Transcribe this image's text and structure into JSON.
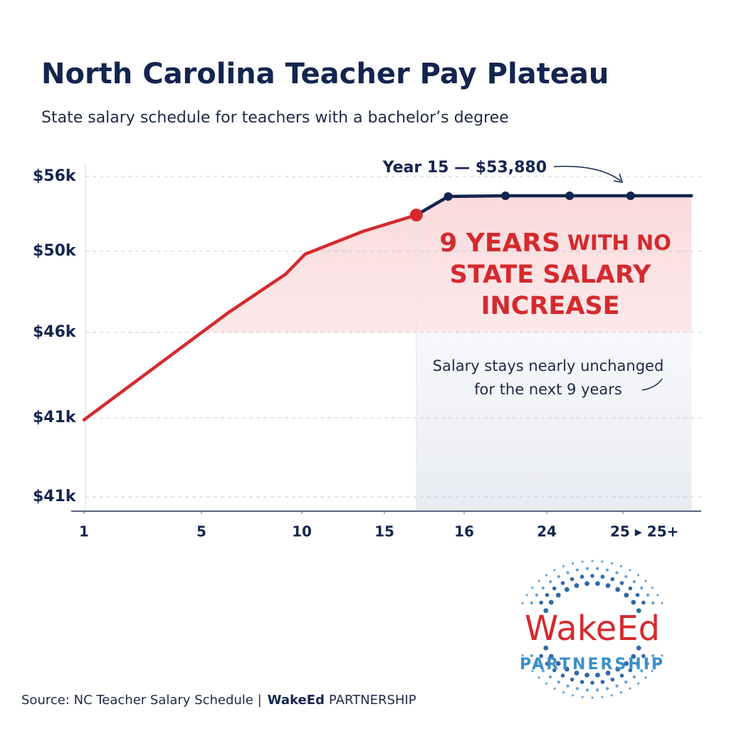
{
  "chart_data": {
    "type": "line",
    "title": "North Carolina Teacher Pay Plateau",
    "subtitle": "State salary schedule for teachers with a bachelor’s degree",
    "xlim": [
      1,
      25.9
    ],
    "xticks": [
      1,
      5,
      10,
      15,
      16,
      24,
      {
        "value": 25,
        "label": "25 ▸ 25+"
      }
    ],
    "ylim": [
      40600,
      56000
    ],
    "yticks": [
      {
        "value": 40600,
        "label": "$41k"
      },
      {
        "value": 41400,
        "label": "$41k"
      },
      {
        "value": 46000,
        "label": "$46k"
      },
      {
        "value": 50000,
        "label": "$50k"
      },
      {
        "value": 56000,
        "label": "$56k"
      }
    ],
    "grid": true,
    "series": [
      {
        "color": "#d42a2f",
        "x": [
          1,
          6.3,
          9.2,
          10.2,
          13.7,
          15.4
        ],
        "values": [
          41380,
          46950,
          48880,
          49860,
          51600,
          52910
        ]
      },
      {
        "color": "#13254f",
        "x": [
          15.4,
          15.8,
          20,
          24.3,
          25.1,
          25.9
        ],
        "values": [
          52910,
          54400,
          54460,
          54460,
          54460,
          54460
        ]
      }
    ],
    "annotations": [
      "Year 15 — $53,880",
      "9 YEARS",
      "WITH NO",
      "STATE SALARY",
      "INCREASE",
      "Salary stays nearly unchanged",
      "for the next 9 years"
    ],
    "source": "Source: NC Teacher Salary  Schedule  |",
    "source_brand": "WakeEd",
    "source_brand_suffix": "PARTNERSHIP",
    "logo": {
      "name": "WakeEd",
      "tagline": "PARTNERSHIP"
    }
  }
}
